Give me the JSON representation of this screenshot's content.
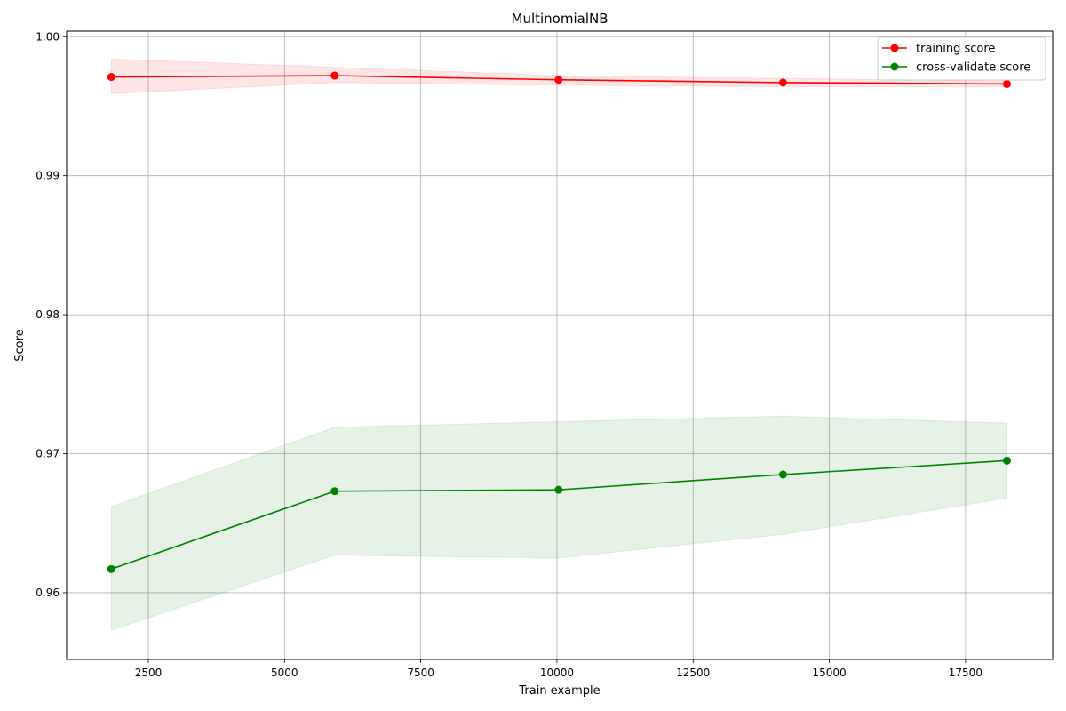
{
  "chart_data": {
    "type": "line",
    "title": "MultinomialNB",
    "xlabel": "Train example",
    "ylabel": "Score",
    "xlim": [
      1000,
      19100
    ],
    "ylim": [
      0.9552,
      1.0004
    ],
    "xticks": [
      2500,
      5000,
      7500,
      10000,
      12500,
      15000,
      17500
    ],
    "xtick_labels": [
      "2500",
      "5000",
      "7500",
      "10000",
      "12500",
      "15000",
      "17500"
    ],
    "yticks": [
      0.96,
      0.97,
      0.98,
      0.99,
      1.0
    ],
    "ytick_labels": [
      "0.96",
      "0.97",
      "0.98",
      "0.99",
      "1.00"
    ],
    "grid": true,
    "legend_position": "top-right",
    "x": [
      1820,
      5920,
      10030,
      14150,
      18260
    ],
    "series": [
      {
        "name": "training score",
        "color": "#ff0000",
        "values": [
          0.9971,
          0.9972,
          0.9969,
          0.9967,
          0.9966
        ],
        "band_upper": [
          0.9984,
          0.9978,
          0.9972,
          0.997,
          0.9968
        ],
        "band_lower": [
          0.9959,
          0.9967,
          0.9965,
          0.9964,
          0.9964
        ],
        "band_color": "#ff0000"
      },
      {
        "name": "cross-validate score",
        "color": "#008000",
        "values": [
          0.9617,
          0.9673,
          0.9674,
          0.9685,
          0.9695
        ],
        "band_upper": [
          0.9662,
          0.9719,
          0.9723,
          0.9727,
          0.9722
        ],
        "band_lower": [
          0.9573,
          0.9627,
          0.9625,
          0.9642,
          0.9668
        ],
        "band_color": "#008000"
      }
    ]
  }
}
